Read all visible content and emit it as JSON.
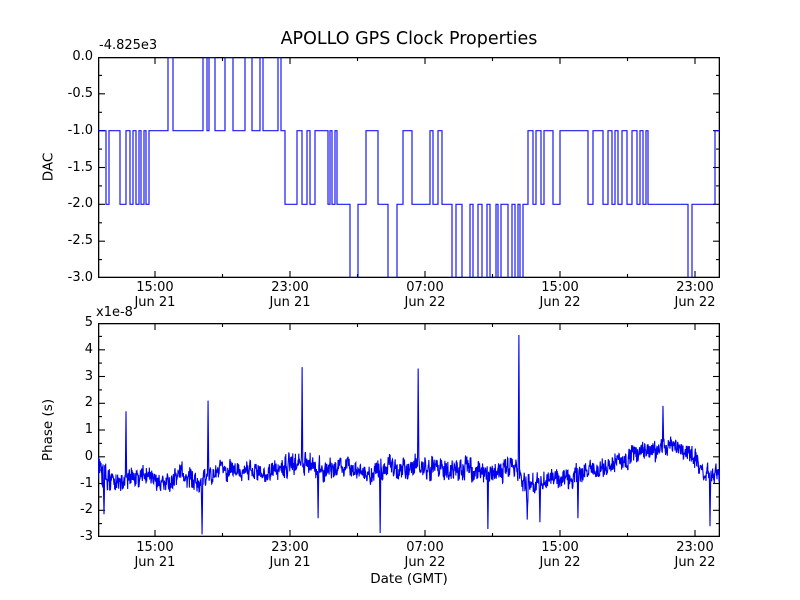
{
  "title": "APOLLO GPS Clock Properties",
  "colors": {
    "line": "#0000ee",
    "frame": "#000000",
    "text": "#000000",
    "background": "#ffffff"
  },
  "xaxis": {
    "label": "Date (GMT)",
    "major_ticks": [
      {
        "pos": 0.0916,
        "time": "15:00",
        "date": "Jun 21"
      },
      {
        "pos": 0.3087,
        "time": "23:00",
        "date": "Jun 21"
      },
      {
        "pos": 0.5257,
        "time": "07:00",
        "date": "Jun 22"
      },
      {
        "pos": 0.7428,
        "time": "15:00",
        "date": "Jun 22"
      },
      {
        "pos": 0.9598,
        "time": "23:00",
        "date": "Jun 22"
      }
    ],
    "minor_ticks": [
      0.2002,
      0.4172,
      0.6343,
      0.8513
    ]
  },
  "chart_data": [
    {
      "type": "line",
      "name": "dac",
      "ylabel": "DAC",
      "offset_text": "-4.825e3",
      "offset_value": -4825,
      "ylim": [
        -3.0,
        0.0
      ],
      "ytick_labels": [
        "0.0",
        "-0.5",
        "-1.0",
        "-1.5",
        "-2.0",
        "-2.5",
        "-3.0"
      ],
      "steps": [
        [
          0.0,
          -1
        ],
        [
          0.0129,
          -2
        ],
        [
          0.0177,
          -1
        ],
        [
          0.0354,
          -2
        ],
        [
          0.045,
          -1
        ],
        [
          0.0514,
          -2
        ],
        [
          0.0563,
          -1
        ],
        [
          0.0611,
          -2
        ],
        [
          0.0659,
          -1
        ],
        [
          0.0691,
          -2
        ],
        [
          0.074,
          -1
        ],
        [
          0.0772,
          -2
        ],
        [
          0.082,
          -1
        ],
        [
          0.1125,
          0
        ],
        [
          0.1206,
          -1
        ],
        [
          0.1688,
          0
        ],
        [
          0.1752,
          -1
        ],
        [
          0.1785,
          0
        ],
        [
          0.1881,
          -1
        ],
        [
          0.2042,
          0
        ],
        [
          0.217,
          -1
        ],
        [
          0.2363,
          0
        ],
        [
          0.2476,
          -1
        ],
        [
          0.2605,
          0
        ],
        [
          0.2653,
          -1
        ],
        [
          0.2894,
          0
        ],
        [
          0.2942,
          -1
        ],
        [
          0.3006,
          -2
        ],
        [
          0.3199,
          -1
        ],
        [
          0.328,
          -2
        ],
        [
          0.336,
          -1
        ],
        [
          0.3408,
          -2
        ],
        [
          0.3489,
          -1
        ],
        [
          0.3698,
          -2
        ],
        [
          0.373,
          -1
        ],
        [
          0.3762,
          -2
        ],
        [
          0.381,
          -1
        ],
        [
          0.3842,
          -2
        ],
        [
          0.4051,
          -3
        ],
        [
          0.418,
          -2
        ],
        [
          0.4309,
          -1
        ],
        [
          0.4502,
          -2
        ],
        [
          0.4662,
          -3
        ],
        [
          0.4807,
          -2
        ],
        [
          0.4904,
          -1
        ],
        [
          0.5048,
          -2
        ],
        [
          0.5338,
          -1
        ],
        [
          0.5386,
          -2
        ],
        [
          0.5466,
          -1
        ],
        [
          0.5531,
          -2
        ],
        [
          0.5691,
          -3
        ],
        [
          0.5756,
          -2
        ],
        [
          0.5852,
          -3
        ],
        [
          0.5981,
          -2
        ],
        [
          0.6029,
          -3
        ],
        [
          0.6109,
          -2
        ],
        [
          0.6174,
          -3
        ],
        [
          0.6254,
          -2
        ],
        [
          0.6302,
          -3
        ],
        [
          0.6399,
          -2
        ],
        [
          0.6431,
          -3
        ],
        [
          0.6479,
          -2
        ],
        [
          0.6592,
          -3
        ],
        [
          0.6656,
          -2
        ],
        [
          0.6704,
          -3
        ],
        [
          0.6752,
          -2
        ],
        [
          0.6785,
          -3
        ],
        [
          0.6833,
          -2
        ],
        [
          0.6913,
          -1
        ],
        [
          0.6994,
          -2
        ],
        [
          0.7042,
          -1
        ],
        [
          0.7122,
          -2
        ],
        [
          0.717,
          -1
        ],
        [
          0.7315,
          -2
        ],
        [
          0.7428,
          -1
        ],
        [
          0.7878,
          -2
        ],
        [
          0.7958,
          -1
        ],
        [
          0.8119,
          -2
        ],
        [
          0.8199,
          -1
        ],
        [
          0.8264,
          -2
        ],
        [
          0.8312,
          -1
        ],
        [
          0.836,
          -2
        ],
        [
          0.8424,
          -1
        ],
        [
          0.8505,
          -2
        ],
        [
          0.8585,
          -1
        ],
        [
          0.8665,
          -2
        ],
        [
          0.8714,
          -1
        ],
        [
          0.8762,
          -2
        ],
        [
          0.881,
          -1
        ],
        [
          0.8842,
          -2
        ],
        [
          0.9486,
          -3
        ],
        [
          0.955,
          -2
        ],
        [
          0.992,
          -1
        ],
        [
          1.0,
          -1
        ]
      ]
    },
    {
      "type": "line",
      "name": "phase",
      "ylabel": "Phase (s)",
      "offset_text": "x1e-8",
      "scale": "1e-8 s",
      "ylim": [
        -3,
        5
      ],
      "ytick_labels": [
        "5",
        "4",
        "3",
        "2",
        "1",
        "0",
        "-1",
        "-2",
        "-3"
      ],
      "band_anchors": [
        [
          0.0,
          -0.8,
          1.0
        ],
        [
          0.019,
          -0.8,
          0.55
        ],
        [
          0.059,
          -0.75,
          0.5
        ],
        [
          0.084,
          -0.7,
          0.5
        ],
        [
          0.108,
          -1.05,
          0.55
        ],
        [
          0.132,
          -0.7,
          0.5
        ],
        [
          0.156,
          -0.9,
          0.6
        ],
        [
          0.188,
          -0.6,
          0.5
        ],
        [
          0.22,
          -0.5,
          0.45
        ],
        [
          0.244,
          -0.3,
          0.5
        ],
        [
          0.269,
          -0.75,
          0.45
        ],
        [
          0.301,
          -0.35,
          0.55
        ],
        [
          0.341,
          -0.3,
          0.6
        ],
        [
          0.373,
          -0.4,
          0.5
        ],
        [
          0.405,
          -0.45,
          0.45
        ],
        [
          0.437,
          -0.6,
          0.5
        ],
        [
          0.478,
          -0.45,
          0.55
        ],
        [
          0.502,
          -0.3,
          0.5
        ],
        [
          0.534,
          -0.55,
          0.55
        ],
        [
          0.558,
          -0.4,
          0.6
        ],
        [
          0.582,
          -0.35,
          0.6
        ],
        [
          0.606,
          -0.55,
          0.55
        ],
        [
          0.646,
          -0.6,
          0.55
        ],
        [
          0.67,
          -0.45,
          0.5
        ],
        [
          0.687,
          -1.15,
          0.6
        ],
        [
          0.719,
          -1.0,
          0.55
        ],
        [
          0.743,
          -0.8,
          0.5
        ],
        [
          0.783,
          -0.45,
          0.5
        ],
        [
          0.807,
          -0.4,
          0.5
        ],
        [
          0.831,
          -0.2,
          0.5
        ],
        [
          0.855,
          -0.1,
          0.5
        ],
        [
          0.879,
          0.2,
          0.5
        ],
        [
          0.92,
          0.4,
          0.45
        ],
        [
          0.944,
          0.3,
          0.5
        ],
        [
          0.96,
          0.0,
          0.5
        ],
        [
          0.976,
          -0.5,
          0.5
        ],
        [
          0.992,
          -0.6,
          0.5
        ],
        [
          1.0,
          -0.7,
          0.45
        ]
      ],
      "spikes": [
        [
          0.0096,
          -2.15
        ],
        [
          0.045,
          1.7
        ],
        [
          0.1672,
          -2.9
        ],
        [
          0.1768,
          2.1
        ],
        [
          0.328,
          3.35
        ],
        [
          0.3537,
          -2.3
        ],
        [
          0.4534,
          -2.85
        ],
        [
          0.5145,
          3.3
        ],
        [
          0.627,
          -2.7
        ],
        [
          0.6768,
          4.55
        ],
        [
          0.69,
          -2.35
        ],
        [
          0.7106,
          -2.45
        ],
        [
          0.7717,
          -2.3
        ],
        [
          0.9084,
          1.9
        ],
        [
          0.9839,
          -2.6
        ]
      ]
    }
  ]
}
